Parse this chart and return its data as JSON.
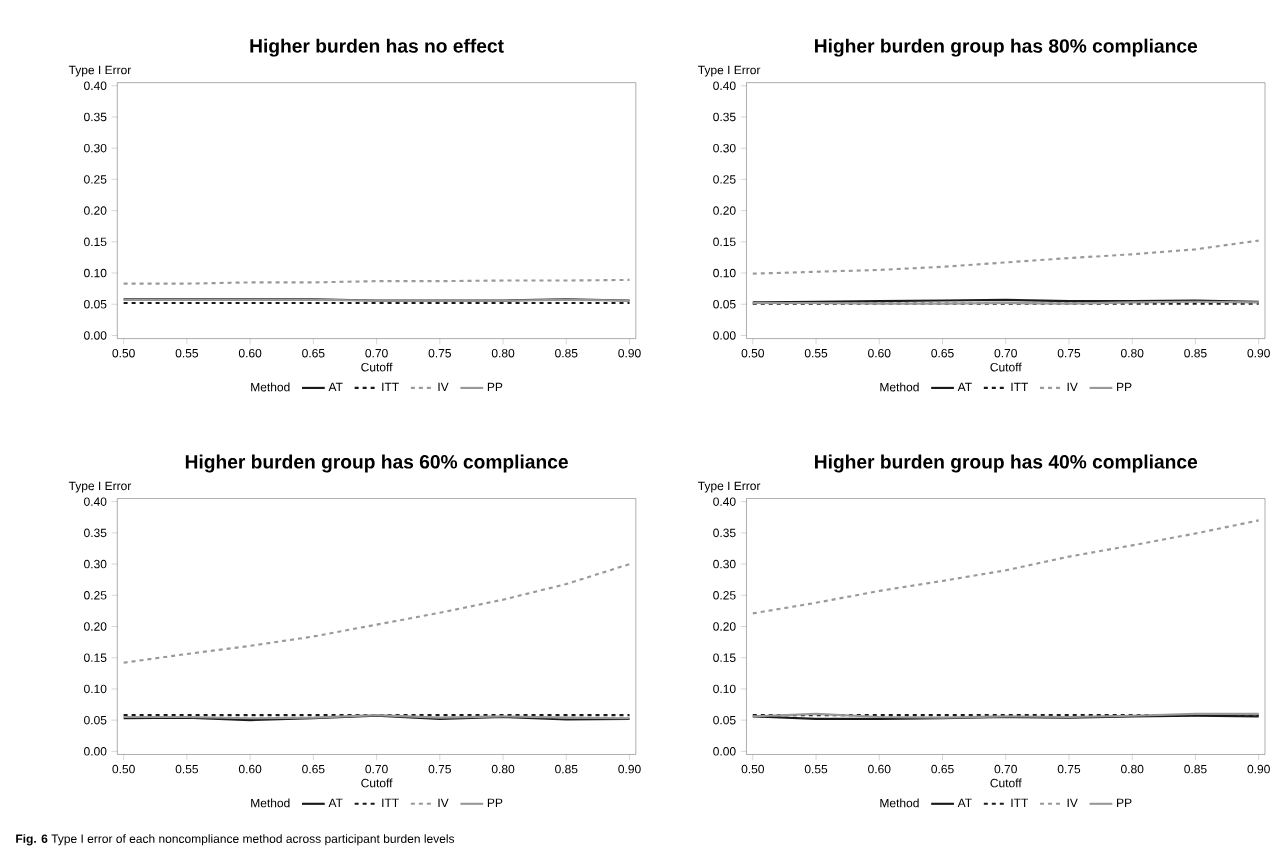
{
  "chart_data": [
    {
      "type": "line",
      "title": "Higher burden has no effect",
      "xlabel": "Cutoff",
      "ylabel": "Type I Error",
      "legend_title": "Method",
      "legend": "bottom",
      "marker": "none",
      "x": [
        0.5,
        0.55,
        0.6,
        0.65,
        0.7,
        0.75,
        0.8,
        0.85,
        0.9
      ],
      "xlim": [
        0.495,
        0.905
      ],
      "ylim": [
        -0.005,
        0.405
      ],
      "xticks": [
        {
          "value": 0.5,
          "label": "0.50"
        },
        {
          "value": 0.55,
          "label": "0.55"
        },
        {
          "value": 0.6,
          "label": "0.60"
        },
        {
          "value": 0.65,
          "label": "0.65"
        },
        {
          "value": 0.7,
          "label": "0.70"
        },
        {
          "value": 0.75,
          "label": "0.75"
        },
        {
          "value": 0.8,
          "label": "0.80"
        },
        {
          "value": 0.85,
          "label": "0.85"
        },
        {
          "value": 0.9,
          "label": "0.90"
        }
      ],
      "yticks": [
        {
          "value": 0,
          "label": "0.00"
        },
        {
          "value": 0.05,
          "label": "0.05"
        },
        {
          "value": 0.1,
          "label": "0.10"
        },
        {
          "value": 0.15,
          "label": "0.15"
        },
        {
          "value": 0.2,
          "label": "0.20"
        },
        {
          "value": 0.25,
          "label": "0.25"
        },
        {
          "value": 0.3,
          "label": "0.30"
        },
        {
          "value": 0.35,
          "label": "0.35"
        },
        {
          "value": 0.4,
          "label": "0.40"
        }
      ],
      "series": [
        {
          "name": "AT",
          "color": "#1a1a1a",
          "line_style": "solid",
          "values": [
            0.058,
            0.058,
            0.058,
            0.058,
            0.056,
            0.056,
            0.056,
            0.058,
            0.056
          ]
        },
        {
          "name": "ITT",
          "color": "#1a1a1a",
          "line_style": "dashed",
          "values": [
            0.052,
            0.052,
            0.052,
            0.052,
            0.052,
            0.052,
            0.052,
            0.052,
            0.052
          ]
        },
        {
          "name": "IV",
          "color": "#999999",
          "line_style": "dashed",
          "values": [
            0.083,
            0.083,
            0.085,
            0.085,
            0.087,
            0.087,
            0.088,
            0.088,
            0.089
          ]
        },
        {
          "name": "PP",
          "color": "#999999",
          "line_style": "solid",
          "values": [
            0.057,
            0.057,
            0.057,
            0.057,
            0.056,
            0.056,
            0.056,
            0.057,
            0.056
          ]
        }
      ]
    },
    {
      "type": "line",
      "title": "Higher burden group has 80% compliance",
      "xlabel": "Cutoff",
      "ylabel": "Type I Error",
      "legend_title": "Method",
      "legend": "bottom",
      "marker": "none",
      "x": [
        0.5,
        0.55,
        0.6,
        0.65,
        0.7,
        0.75,
        0.8,
        0.85,
        0.9
      ],
      "xlim": [
        0.495,
        0.905
      ],
      "ylim": [
        -0.005,
        0.405
      ],
      "xticks": [
        {
          "value": 0.5,
          "label": "0.50"
        },
        {
          "value": 0.55,
          "label": "0.55"
        },
        {
          "value": 0.6,
          "label": "0.60"
        },
        {
          "value": 0.65,
          "label": "0.65"
        },
        {
          "value": 0.7,
          "label": "0.70"
        },
        {
          "value": 0.75,
          "label": "0.75"
        },
        {
          "value": 0.8,
          "label": "0.80"
        },
        {
          "value": 0.85,
          "label": "0.85"
        },
        {
          "value": 0.9,
          "label": "0.90"
        }
      ],
      "yticks": [
        {
          "value": 0,
          "label": "0.00"
        },
        {
          "value": 0.05,
          "label": "0.05"
        },
        {
          "value": 0.1,
          "label": "0.10"
        },
        {
          "value": 0.15,
          "label": "0.15"
        },
        {
          "value": 0.2,
          "label": "0.20"
        },
        {
          "value": 0.25,
          "label": "0.25"
        },
        {
          "value": 0.3,
          "label": "0.30"
        },
        {
          "value": 0.35,
          "label": "0.35"
        },
        {
          "value": 0.4,
          "label": "0.40"
        }
      ],
      "series": [
        {
          "name": "AT",
          "color": "#1a1a1a",
          "line_style": "solid",
          "values": [
            0.053,
            0.054,
            0.055,
            0.056,
            0.057,
            0.055,
            0.055,
            0.056,
            0.054
          ]
        },
        {
          "name": "ITT",
          "color": "#1a1a1a",
          "line_style": "dashed",
          "values": [
            0.051,
            0.051,
            0.051,
            0.051,
            0.051,
            0.051,
            0.051,
            0.051,
            0.051
          ]
        },
        {
          "name": "IV",
          "color": "#999999",
          "line_style": "dashed",
          "values": [
            0.099,
            0.102,
            0.105,
            0.11,
            0.117,
            0.124,
            0.13,
            0.138,
            0.152
          ]
        },
        {
          "name": "PP",
          "color": "#999999",
          "line_style": "solid",
          "values": [
            0.052,
            0.052,
            0.051,
            0.051,
            0.052,
            0.051,
            0.053,
            0.054,
            0.053
          ]
        }
      ]
    },
    {
      "type": "line",
      "title": "Higher burden group has 60% compliance",
      "xlabel": "Cutoff",
      "ylabel": "Type I Error",
      "legend_title": "Method",
      "legend": "bottom",
      "marker": "none",
      "x": [
        0.5,
        0.55,
        0.6,
        0.65,
        0.7,
        0.75,
        0.8,
        0.85,
        0.9
      ],
      "xlim": [
        0.495,
        0.905
      ],
      "ylim": [
        -0.005,
        0.405
      ],
      "xticks": [
        {
          "value": 0.5,
          "label": "0.50"
        },
        {
          "value": 0.55,
          "label": "0.55"
        },
        {
          "value": 0.6,
          "label": "0.60"
        },
        {
          "value": 0.65,
          "label": "0.65"
        },
        {
          "value": 0.7,
          "label": "0.70"
        },
        {
          "value": 0.75,
          "label": "0.75"
        },
        {
          "value": 0.8,
          "label": "0.80"
        },
        {
          "value": 0.85,
          "label": "0.85"
        },
        {
          "value": 0.9,
          "label": "0.90"
        }
      ],
      "yticks": [
        {
          "value": 0,
          "label": "0.00"
        },
        {
          "value": 0.05,
          "label": "0.05"
        },
        {
          "value": 0.1,
          "label": "0.10"
        },
        {
          "value": 0.15,
          "label": "0.15"
        },
        {
          "value": 0.2,
          "label": "0.20"
        },
        {
          "value": 0.25,
          "label": "0.25"
        },
        {
          "value": 0.3,
          "label": "0.30"
        },
        {
          "value": 0.35,
          "label": "0.35"
        },
        {
          "value": 0.4,
          "label": "0.40"
        }
      ],
      "series": [
        {
          "name": "AT",
          "color": "#1a1a1a",
          "line_style": "solid",
          "values": [
            0.053,
            0.054,
            0.05,
            0.053,
            0.057,
            0.052,
            0.055,
            0.051,
            0.052
          ]
        },
        {
          "name": "ITT",
          "color": "#1a1a1a",
          "line_style": "dashed",
          "values": [
            0.058,
            0.058,
            0.058,
            0.058,
            0.058,
            0.058,
            0.058,
            0.058,
            0.058
          ]
        },
        {
          "name": "IV",
          "color": "#999999",
          "line_style": "dashed",
          "values": [
            0.142,
            0.156,
            0.169,
            0.184,
            0.203,
            0.222,
            0.243,
            0.268,
            0.3
          ]
        },
        {
          "name": "PP",
          "color": "#999999",
          "line_style": "solid",
          "values": [
            0.055,
            0.055,
            0.053,
            0.054,
            0.058,
            0.054,
            0.056,
            0.054,
            0.053
          ]
        }
      ]
    },
    {
      "type": "line",
      "title": "Higher burden group has 40% compliance",
      "xlabel": "Cutoff",
      "ylabel": "Type I Error",
      "legend_title": "Method",
      "legend": "bottom",
      "marker": "none",
      "x": [
        0.5,
        0.55,
        0.6,
        0.65,
        0.7,
        0.75,
        0.8,
        0.85,
        0.9
      ],
      "xlim": [
        0.495,
        0.905
      ],
      "ylim": [
        -0.005,
        0.405
      ],
      "xticks": [
        {
          "value": 0.5,
          "label": "0.50"
        },
        {
          "value": 0.55,
          "label": "0.55"
        },
        {
          "value": 0.6,
          "label": "0.60"
        },
        {
          "value": 0.65,
          "label": "0.65"
        },
        {
          "value": 0.7,
          "label": "0.70"
        },
        {
          "value": 0.75,
          "label": "0.75"
        },
        {
          "value": 0.8,
          "label": "0.80"
        },
        {
          "value": 0.85,
          "label": "0.85"
        },
        {
          "value": 0.9,
          "label": "0.90"
        }
      ],
      "yticks": [
        {
          "value": 0,
          "label": "0.00"
        },
        {
          "value": 0.05,
          "label": "0.05"
        },
        {
          "value": 0.1,
          "label": "0.10"
        },
        {
          "value": 0.15,
          "label": "0.15"
        },
        {
          "value": 0.2,
          "label": "0.20"
        },
        {
          "value": 0.25,
          "label": "0.25"
        },
        {
          "value": 0.3,
          "label": "0.30"
        },
        {
          "value": 0.35,
          "label": "0.35"
        },
        {
          "value": 0.4,
          "label": "0.40"
        }
      ],
      "annotations": [
        "**Fig. 6** Type I error of each noncompliance method across participant burden levels"
      ],
      "series": [
        {
          "name": "AT",
          "color": "#1a1a1a",
          "line_style": "solid",
          "values": [
            0.056,
            0.052,
            0.052,
            0.053,
            0.055,
            0.054,
            0.056,
            0.057,
            0.056
          ]
        },
        {
          "name": "ITT",
          "color": "#1a1a1a",
          "line_style": "dashed",
          "values": [
            0.058,
            0.058,
            0.058,
            0.058,
            0.058,
            0.058,
            0.058,
            0.058,
            0.058
          ]
        },
        {
          "name": "IV",
          "color": "#999999",
          "line_style": "dashed",
          "values": [
            0.221,
            0.238,
            0.257,
            0.273,
            0.29,
            0.312,
            0.33,
            0.349,
            0.37
          ]
        },
        {
          "name": "PP",
          "color": "#999999",
          "line_style": "solid",
          "values": [
            0.056,
            0.06,
            0.055,
            0.054,
            0.056,
            0.055,
            0.057,
            0.06,
            0.06
          ]
        }
      ]
    }
  ]
}
